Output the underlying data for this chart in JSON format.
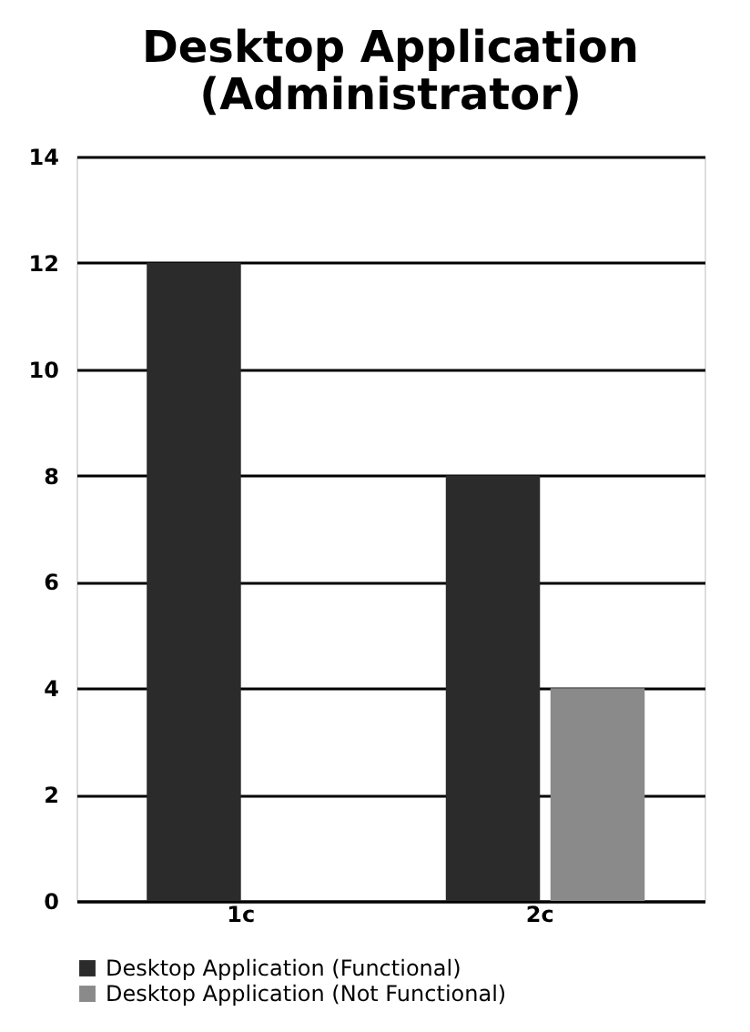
{
  "chart_data": {
    "type": "bar",
    "title": "Desktop Application (Administrator)",
    "categories": [
      "1c",
      "2c"
    ],
    "series": [
      {
        "name": "Desktop Application  (Functional)",
        "color": "#2b2b2b",
        "values": [
          12,
          8
        ]
      },
      {
        "name": "Desktop Application  (Not Functional)",
        "color": "#8a8a8a",
        "values": [
          0,
          4
        ]
      }
    ],
    "ylim": [
      0,
      14
    ],
    "yticks": [
      0,
      2,
      4,
      6,
      8,
      10,
      12,
      14
    ],
    "grid": "y",
    "legend": "bottom"
  }
}
